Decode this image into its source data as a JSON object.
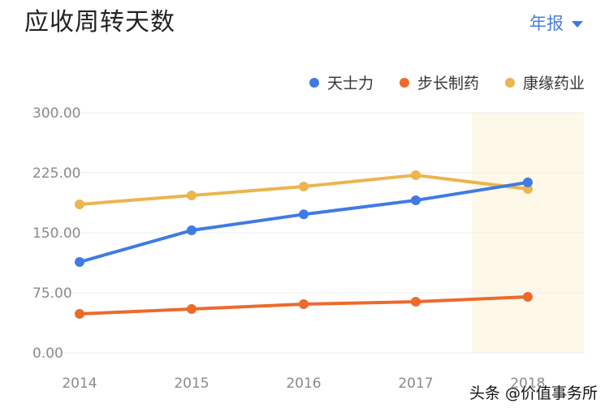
{
  "header": {
    "title": "应收周转天数",
    "period_selector": "年报"
  },
  "legend": [
    {
      "label": "天士力",
      "color": "#3f7be3"
    },
    {
      "label": "步长制药",
      "color": "#ec6a2c"
    },
    {
      "label": "康缘药业",
      "color": "#ebb54f"
    }
  ],
  "watermark": "头条 @价值事务所",
  "colors": {
    "highlight_band": "#fdf8e8",
    "gridline": "#eeeeee",
    "axis_text": "#8a8a8a"
  },
  "chart_data": {
    "type": "line",
    "title": "应收周转天数",
    "xlabel": "",
    "ylabel": "",
    "categories": [
      "2014",
      "2015",
      "2016",
      "2017",
      "2018"
    ],
    "y_ticks": [
      "0.00",
      "75.00",
      "150.00",
      "225.00",
      "300.00"
    ],
    "ylim": [
      0,
      300
    ],
    "grid": true,
    "legend_position": "top-right",
    "highlighted_category": "2018",
    "series": [
      {
        "name": "天士力",
        "color": "#3f7be3",
        "values": [
          113.5,
          153.0,
          173.0,
          190.5,
          213.0
        ]
      },
      {
        "name": "步长制药",
        "color": "#ec6a2c",
        "values": [
          48.6,
          54.7,
          60.8,
          63.8,
          69.9
        ]
      },
      {
        "name": "康缘药业",
        "color": "#ebb54f",
        "values": [
          185.5,
          196.6,
          207.8,
          222.0,
          204.7
        ]
      }
    ]
  }
}
